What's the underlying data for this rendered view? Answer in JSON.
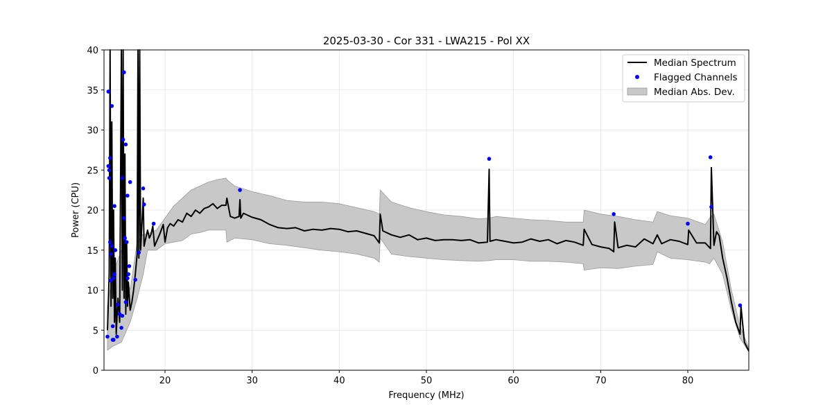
{
  "chart_data": {
    "type": "line",
    "title": "2025-03-30 - Cor 331 - LWA215 - Pol XX",
    "xlabel": "Frequency (MHz)",
    "ylabel": "Power (CPU)",
    "xlim": [
      13,
      87
    ],
    "ylim": [
      0,
      40
    ],
    "xticks": [
      20,
      30,
      40,
      50,
      60,
      70,
      80
    ],
    "yticks": [
      0,
      5,
      10,
      15,
      20,
      25,
      30,
      35,
      40
    ],
    "grid": true,
    "legend_position": "top-right",
    "colors": {
      "median": "#000000",
      "flagged": "#0000ff",
      "mad_fill": "#c8c8c8",
      "mad_edge": "#9a9a9a"
    },
    "legend": [
      "Median Spectrum",
      "Flagged Channels",
      "Median Abs. Dev."
    ],
    "series": [
      {
        "name": "Median Spectrum",
        "kind": "line",
        "x": [
          13.4,
          13.6,
          13.7,
          13.8,
          13.9,
          14.0,
          14.1,
          14.2,
          14.3,
          14.4,
          14.6,
          14.8,
          15.0,
          15.1,
          15.2,
          15.3,
          15.4,
          15.5,
          15.6,
          15.7,
          15.8,
          16.0,
          16.2,
          16.4,
          16.6,
          16.8,
          16.9,
          17.0,
          17.1,
          17.2,
          17.5,
          17.6,
          17.8,
          18.0,
          18.2,
          18.4,
          18.6,
          18.8,
          19.0,
          19.4,
          19.8,
          20.0,
          20.3,
          20.6,
          21.0,
          21.5,
          22.0,
          22.5,
          23.0,
          23.5,
          24.0,
          24.5,
          25.0,
          25.5,
          26.0,
          26.5,
          27.0,
          27.1,
          27.5,
          28.0,
          28.5,
          28.6,
          28.7,
          29.0,
          30.0,
          31.0,
          32.0,
          33.0,
          34.0,
          35.0,
          36.0,
          37.0,
          38.0,
          39.0,
          40.0,
          41.0,
          42.0,
          43.0,
          44.0,
          44.6,
          44.7,
          45.0,
          46.0,
          47.0,
          48.0,
          49.0,
          50.0,
          51.0,
          52.0,
          53.0,
          54.0,
          55.0,
          56.0,
          57.0,
          57.2,
          57.3,
          58.0,
          59.0,
          60.0,
          61.0,
          62.0,
          63.0,
          64.0,
          65.0,
          66.0,
          67.0,
          68.0,
          68.1,
          69.0,
          70.0,
          71.0,
          71.5,
          71.6,
          72.0,
          73.0,
          74.0,
          75.0,
          76.0,
          76.5,
          77.0,
          78.0,
          79.0,
          80.0,
          80.1,
          81.0,
          82.0,
          82.6,
          82.7,
          83.0,
          83.3,
          83.6,
          84.0,
          84.5,
          85.0,
          85.5,
          86.0,
          86.1,
          86.5,
          87.0
        ],
        "values": [
          5.0,
          12.0,
          40.0,
          8.0,
          31.0,
          9.0,
          20.0,
          6.0,
          14.0,
          4.5,
          9.0,
          6.0,
          40.0,
          10.0,
          40.0,
          9.0,
          27.0,
          7.0,
          16.0,
          8.0,
          11.0,
          7.5,
          8.5,
          10.0,
          12.0,
          14.5,
          40.0,
          14.0,
          40.0,
          15.0,
          21.5,
          15.5,
          16.5,
          17.5,
          16.5,
          17.0,
          18.0,
          15.5,
          16.0,
          17.0,
          18.2,
          16.0,
          17.8,
          18.3,
          18.0,
          18.8,
          18.5,
          19.6,
          19.2,
          20.0,
          19.6,
          20.2,
          20.4,
          20.8,
          20.2,
          20.6,
          20.6,
          21.5,
          19.2,
          19.0,
          19.2,
          21.3,
          19.0,
          19.6,
          19.1,
          18.8,
          18.2,
          17.8,
          17.7,
          17.8,
          17.4,
          17.6,
          17.5,
          17.7,
          17.6,
          17.3,
          17.4,
          17.1,
          16.8,
          15.9,
          19.5,
          17.4,
          16.9,
          16.6,
          16.9,
          16.3,
          16.5,
          16.2,
          16.3,
          16.3,
          16.2,
          16.3,
          15.9,
          16.0,
          25.1,
          16.1,
          16.3,
          16.1,
          15.9,
          16.0,
          16.4,
          16.1,
          16.3,
          15.8,
          16.2,
          16.0,
          15.6,
          17.6,
          15.7,
          15.4,
          15.2,
          14.8,
          18.5,
          15.3,
          15.6,
          15.4,
          16.4,
          15.8,
          16.9,
          15.8,
          16.3,
          16.1,
          15.7,
          17.5,
          15.9,
          15.9,
          15.2,
          25.3,
          15.6,
          17.3,
          16.8,
          14.0,
          11.5,
          8.5,
          6.0,
          4.5,
          8.0,
          3.5,
          2.4
        ]
      },
      {
        "name": "Median Abs. Dev.",
        "kind": "band",
        "x": [
          13.4,
          14.0,
          15.0,
          16.0,
          16.8,
          17.5,
          18.0,
          19.0,
          20.0,
          21.0,
          22.0,
          23.0,
          24.0,
          25.0,
          26.0,
          27.0,
          27.1,
          28.0,
          30.0,
          32.0,
          34.0,
          36.0,
          38.0,
          40.0,
          42.0,
          44.0,
          44.6,
          44.7,
          46.0,
          48.0,
          50.0,
          52.0,
          54.0,
          56.0,
          57.2,
          58.0,
          60.0,
          62.0,
          64.0,
          66.0,
          68.0,
          68.1,
          70.0,
          72.0,
          74.0,
          76.0,
          76.5,
          78.0,
          80.0,
          82.0,
          82.5,
          83.0,
          84.0,
          85.0,
          86.0,
          87.0
        ],
        "lower": [
          2.5,
          3.0,
          3.5,
          6.0,
          9.0,
          12.0,
          15.0,
          15.0,
          15.8,
          16.0,
          16.2,
          17.0,
          17.2,
          17.5,
          17.5,
          17.5,
          16.0,
          16.5,
          16.3,
          15.8,
          15.6,
          15.3,
          15.0,
          14.8,
          14.5,
          14.0,
          13.5,
          16.5,
          14.5,
          14.2,
          14.0,
          13.8,
          13.7,
          13.6,
          13.7,
          13.8,
          13.8,
          13.6,
          13.6,
          13.5,
          13.3,
          12.5,
          12.8,
          12.7,
          13.0,
          13.2,
          14.8,
          14.0,
          13.8,
          13.5,
          13.3,
          14.0,
          12.0,
          7.5,
          4.0,
          2.3
        ],
        "upper": [
          8.0,
          12.0,
          15.0,
          10.0,
          16.0,
          17.0,
          17.0,
          17.5,
          19.0,
          20.5,
          21.5,
          22.5,
          23.0,
          23.5,
          23.8,
          24.0,
          23.8,
          23.0,
          22.3,
          21.8,
          21.2,
          21.0,
          21.0,
          20.8,
          20.3,
          19.8,
          19.5,
          22.5,
          21.0,
          20.3,
          19.8,
          19.4,
          19.2,
          18.9,
          19.0,
          19.2,
          19.0,
          18.8,
          18.7,
          18.5,
          18.5,
          20.0,
          19.5,
          19.2,
          18.8,
          18.5,
          19.8,
          19.3,
          19.0,
          18.2,
          19.0,
          19.5,
          16.0,
          10.0,
          5.5,
          2.8
        ]
      },
      {
        "name": "Flagged Channels",
        "kind": "scatter",
        "x": [
          13.4,
          13.5,
          13.5,
          13.6,
          13.6,
          13.7,
          13.7,
          13.8,
          13.8,
          13.9,
          13.9,
          14.0,
          14.0,
          14.1,
          14.1,
          14.2,
          14.2,
          14.3,
          14.5,
          14.6,
          14.8,
          15.0,
          15.1,
          15.1,
          15.2,
          15.3,
          15.3,
          15.4,
          15.5,
          15.5,
          15.6,
          15.7,
          15.7,
          15.8,
          15.9,
          16.0,
          16.6,
          17.0,
          17.5,
          17.6,
          18.7,
          28.6,
          57.2,
          71.5,
          80.0,
          82.6,
          82.7,
          86.0
        ],
        "values": [
          4.2,
          25.5,
          34.8,
          24.0,
          25.0,
          26.5,
          16.0,
          14.5,
          11.2,
          33.0,
          15.5,
          5.5,
          3.8,
          11.5,
          3.8,
          12.0,
          20.5,
          15.0,
          4.2,
          8.2,
          7.0,
          5.3,
          6.8,
          24.0,
          28.8,
          37.2,
          19.0,
          16.5,
          28.2,
          8.5,
          16.0,
          21.8,
          11.5,
          12.0,
          13.0,
          23.5,
          11.3,
          14.7,
          22.7,
          20.7,
          18.3,
          22.5,
          26.4,
          19.5,
          18.3,
          26.6,
          20.4,
          8.1
        ]
      }
    ]
  }
}
